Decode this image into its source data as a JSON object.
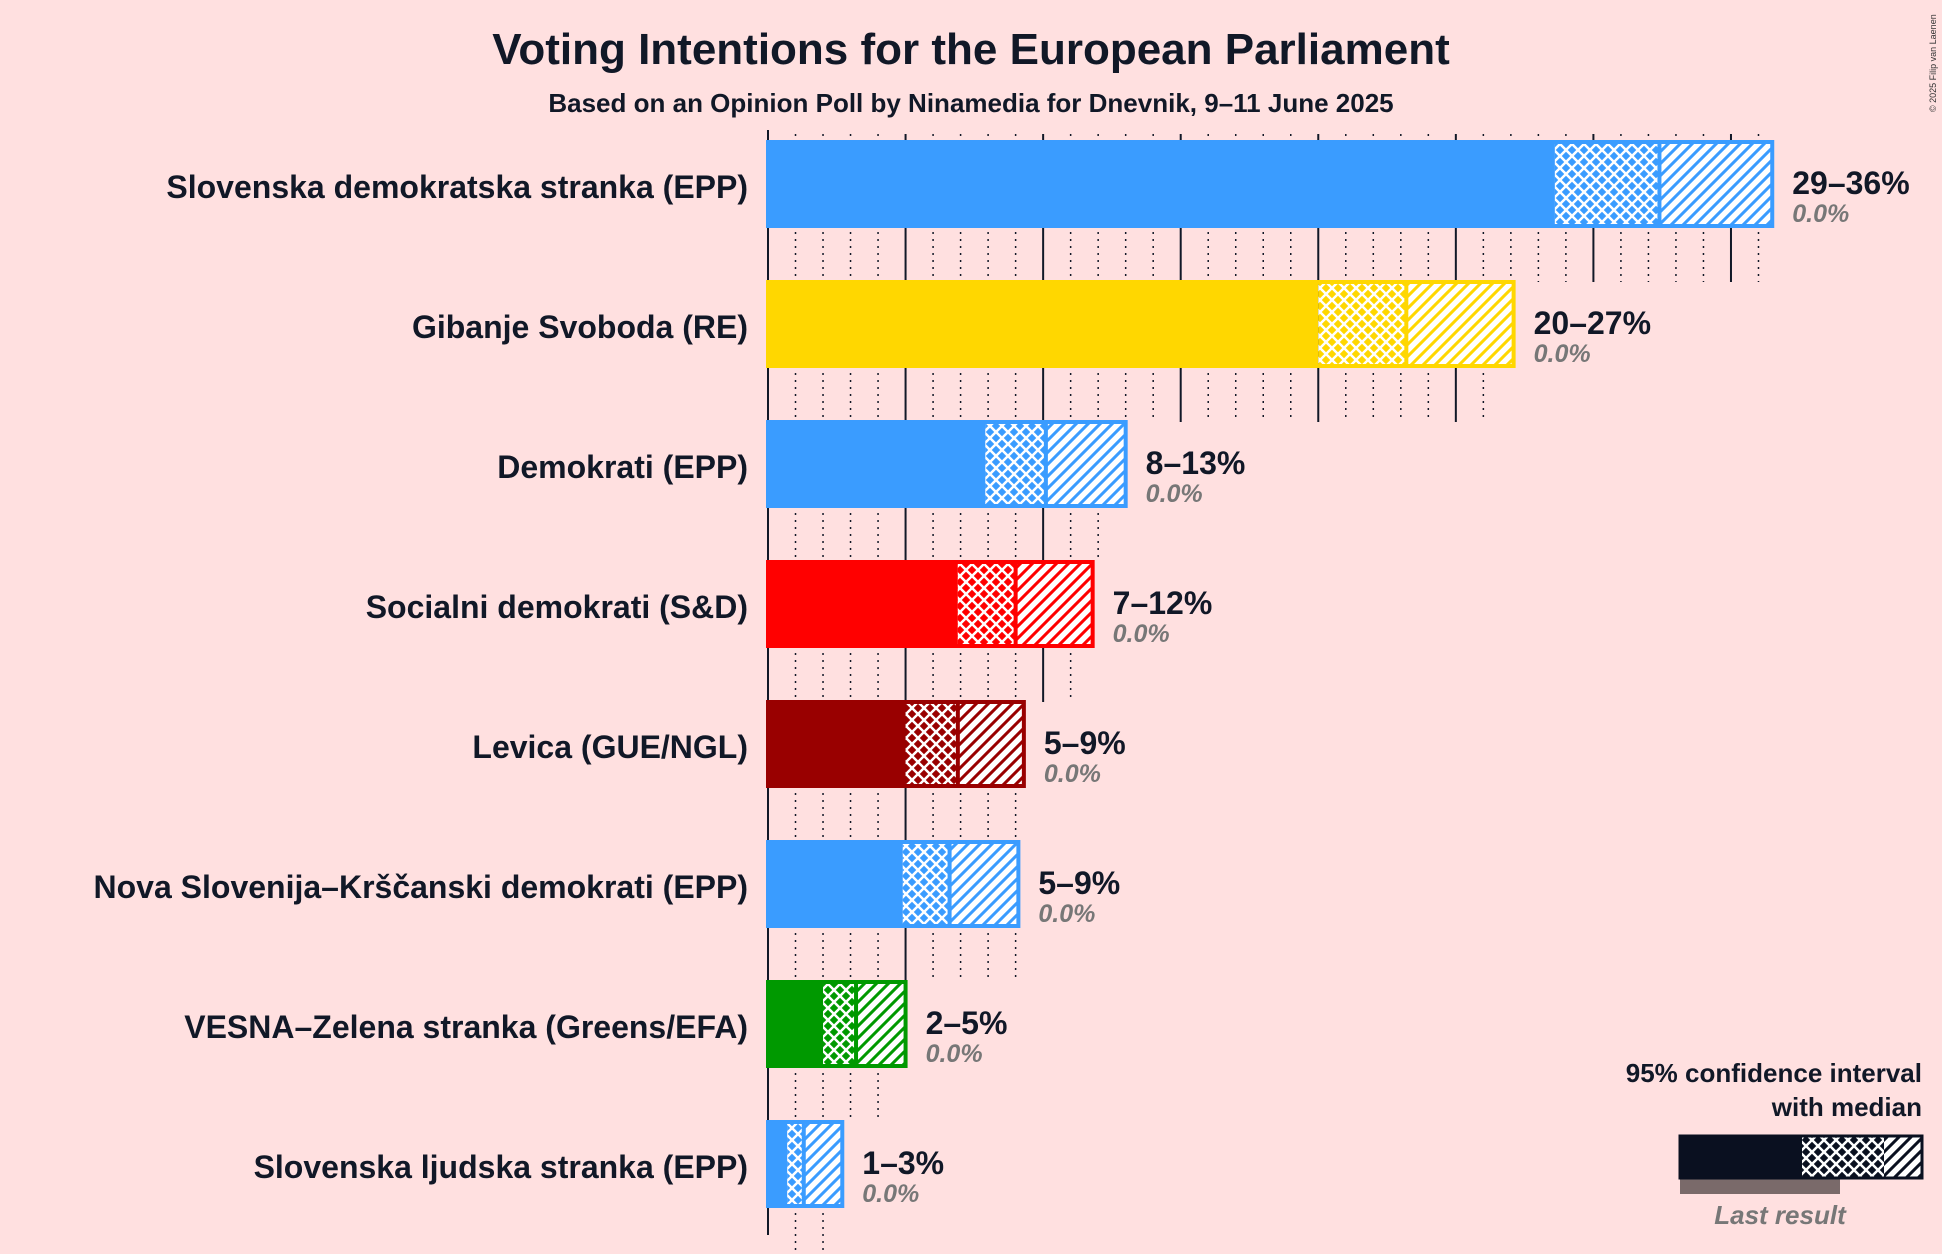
{
  "chart_data": {
    "type": "bar",
    "title": "Voting Intentions for the European Parliament",
    "subtitle": "Based on an Opinion Poll by Ninamedia for Dnevnik, 9–11 June 2025",
    "copyright": "© 2025 Filip van Laenen",
    "xlim": [
      0,
      36.6
    ],
    "series": [
      {
        "name": "Slovenska demokratska stranka (EPP)",
        "color": "#3A9CFF",
        "ci80_low": 28.6,
        "median": 32.4,
        "ci80_high": 32.4,
        "ci95_low": 28.6,
        "ci95_high": 36.5,
        "inner_low": 28.6,
        "inner_high": 32.3,
        "label": "29–36%",
        "last": "0.0%",
        "last_value": 0,
        "ticks_to": 36.5
      },
      {
        "name": "Gibanje Svoboda (RE)",
        "color": "#FFD700",
        "ci95_low": 20.0,
        "median": 23.2,
        "ci95_high": 27.1,
        "label": "20–27%",
        "last": "0.0%",
        "last_value": 0,
        "ticks_to": 26.5
      },
      {
        "name": "Demokrati (EPP)",
        "color": "#3A9CFF",
        "ci95_low": 7.9,
        "median": 10.1,
        "ci95_high": 13.0,
        "label": "8–13%",
        "last": "0.0%",
        "last_value": 0,
        "ticks_to": 12.0
      },
      {
        "name": "Socialni demokrati (S&D)",
        "color": "#FF0000",
        "ci95_low": 6.9,
        "median": 9.0,
        "ci95_high": 11.8,
        "label": "7–12%",
        "last": "0.0%",
        "last_value": 0,
        "ticks_to": 11.0
      },
      {
        "name": "Levica (GUE/NGL)",
        "color": "#990000",
        "ci95_low": 5.0,
        "median": 6.9,
        "ci95_high": 9.3,
        "label": "5–9%",
        "last": "0.0%",
        "last_value": 0,
        "ticks_to": 9.0
      },
      {
        "name": "Nova Slovenija–Krščanski demokrati (EPP)",
        "color": "#3A9CFF",
        "ci95_low": 4.9,
        "median": 6.6,
        "ci95_high": 9.1,
        "label": "5–9%",
        "last": "0.0%",
        "last_value": 0,
        "ticks_to": 9.0
      },
      {
        "name": "VESNA–Zelena stranka (Greens/EFA)",
        "color": "#009900",
        "ci95_low": 2.0,
        "median": 3.2,
        "ci95_high": 5.0,
        "label": "2–5%",
        "last": "0.0%",
        "last_value": 0,
        "ticks_to": 4.0
      },
      {
        "name": "Slovenska ljudska stranka (EPP)",
        "color": "#3A9CFF",
        "ci95_low": 0.7,
        "median": 1.3,
        "ci95_high": 2.7,
        "label": "1–3%",
        "last": "0.0%",
        "last_value": 0,
        "ticks_to": 2.0
      }
    ],
    "legend": {
      "line1": "95% confidence interval",
      "line2": "with median",
      "last_result": "Last result",
      "color": "#0A1020",
      "last_color": "#7A6A6A"
    }
  }
}
